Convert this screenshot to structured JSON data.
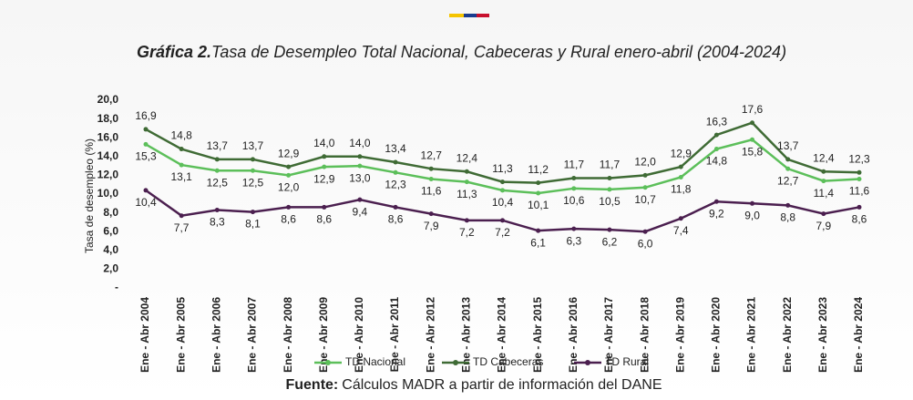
{
  "chart_data": {
    "type": "line",
    "title_label": "Gráfica 2.",
    "title": "Tasa de Desempleo Total Nacional, Cabeceras y Rural enero-abril (2004-2024)",
    "y_label": "Tasa de desempleo (%)",
    "source_label": "Fuente:",
    "source": "Cálculos MADR a partir de información del DANE",
    "categories": [
      "Ene - Abr 2004",
      "Ene - Abr 2005",
      "Ene - Abr 2006",
      "Ene - Abr 2007",
      "Ene - Abr 2008",
      "Ene - Abr 2009",
      "Ene - Abr 2010",
      "Ene - Abr 2011",
      "Ene - Abr 2012",
      "Ene - Abr 2013",
      "Ene - Abr 2014",
      "Ene - Abr 2015",
      "Ene - Abr 2016",
      "Ene - Abr 2017",
      "Ene - Abr 2018",
      "Ene - Abr 2019",
      "Ene - Abr 2020",
      "Ene - Abr 2021",
      "Ene - Abr 2022",
      "Ene - Abr 2023",
      "Ene - Abr 2024"
    ],
    "series": [
      {
        "name": "TD Nacional",
        "color": "#5cbf5a",
        "label_color": "#4caf4a",
        "values": [
          15.3,
          13.1,
          12.5,
          12.5,
          12.0,
          12.9,
          13.0,
          12.3,
          11.6,
          11.3,
          10.4,
          10.1,
          10.6,
          10.5,
          10.7,
          11.8,
          14.8,
          15.8,
          12.7,
          11.4,
          11.6
        ],
        "value_labels": [
          "15,3",
          "13,1",
          "12,5",
          "12,5",
          "12,0",
          "12,9",
          "13,0",
          "12,3",
          "11,6",
          "11,3",
          "10,4",
          "10,1",
          "10,6",
          "10,5",
          "10,7",
          "11,8",
          "14,8",
          "15,8",
          "12,7",
          "11,4",
          "11,6"
        ]
      },
      {
        "name": "TD Cabeceras",
        "color": "#3f6b35",
        "label_color": "#777777",
        "values": [
          16.9,
          14.8,
          13.7,
          13.7,
          12.9,
          14.0,
          14.0,
          13.4,
          12.7,
          12.4,
          11.3,
          11.2,
          11.7,
          11.7,
          12.0,
          12.9,
          16.3,
          17.6,
          13.7,
          12.4,
          12.3
        ],
        "value_labels": [
          "16,9",
          "14,8",
          "13,7",
          "13,7",
          "12,9",
          "14,0",
          "14,0",
          "13,4",
          "12,7",
          "12,4",
          "11,3",
          "11,2",
          "11,7",
          "11,7",
          "12,0",
          "12,9",
          "16,3",
          "17,6",
          "13,7",
          "12,4",
          "12,3"
        ]
      },
      {
        "name": "TD Rural",
        "color": "#4b1f4f",
        "label_color": "#4b1f4f",
        "values": [
          10.4,
          7.7,
          8.3,
          8.1,
          8.6,
          8.6,
          9.4,
          8.6,
          7.9,
          7.2,
          7.2,
          6.1,
          6.3,
          6.2,
          6.0,
          7.4,
          9.2,
          9.0,
          8.8,
          7.9,
          8.6
        ],
        "value_labels": [
          "10,4",
          "7,7",
          "8,3",
          "8,1",
          "8,6",
          "8,6",
          "9,4",
          "8,6",
          "7,9",
          "7,2",
          "7,2",
          "6,1",
          "6,3",
          "6,2",
          "6,0",
          "7,4",
          "9,2",
          "9,0",
          "8,8",
          "7,9",
          "8,6"
        ]
      }
    ],
    "ylim": [
      0,
      20
    ],
    "yticks": [
      {
        "value": 0,
        "label": "-"
      },
      {
        "value": 2,
        "label": "2,0"
      },
      {
        "value": 4,
        "label": "4,0"
      },
      {
        "value": 6,
        "label": "6,0"
      },
      {
        "value": 8,
        "label": "8,0"
      },
      {
        "value": 10,
        "label": "10,0"
      },
      {
        "value": 12,
        "label": "12,0"
      },
      {
        "value": 14,
        "label": "14,0"
      },
      {
        "value": 16,
        "label": "16,0"
      },
      {
        "value": 18,
        "label": "18,0"
      },
      {
        "value": 20,
        "label": "20,0"
      }
    ],
    "legend": "bottom"
  }
}
